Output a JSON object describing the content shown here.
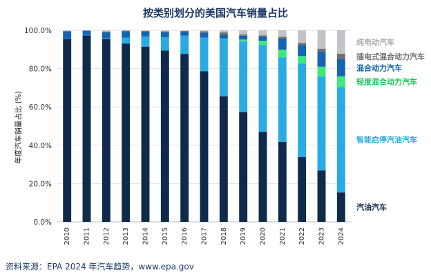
{
  "chart_data": {
    "type": "bar",
    "stacked": true,
    "title": "按类别划分的美国汽车销量占比",
    "ylabel": "年度汽车销量占比 (%)",
    "xlabel": "",
    "ylim": [
      0,
      100
    ],
    "yticks": [
      "0.0%",
      "20.0%",
      "40.0%",
      "60.0%",
      "80.0%",
      "100.0%"
    ],
    "ytick_values": [
      0,
      20,
      40,
      60,
      80,
      100
    ],
    "grid": true,
    "legend_placement": "right, inline labels",
    "categories": [
      "2010",
      "2011",
      "2012",
      "2013",
      "2014",
      "2015",
      "2016",
      "2017",
      "2018",
      "2019",
      "2020",
      "2021",
      "2022",
      "2023",
      "2024"
    ],
    "series": [
      {
        "name": "汽油汽车",
        "color": "#0f2a4a",
        "values": [
          95.6,
          97.3,
          95.5,
          93.1,
          91.5,
          89.4,
          87.6,
          78.6,
          65.6,
          57.3,
          47.0,
          41.8,
          33.8,
          26.8,
          15.4
        ]
      },
      {
        "name": "智能启停汽油汽车",
        "color": "#29abe2",
        "values": [
          0.1,
          0.3,
          0.4,
          3.0,
          5.2,
          7.0,
          9.6,
          17.6,
          29.8,
          36.9,
          45.4,
          44.0,
          48.9,
          49.2,
          55.0
        ]
      },
      {
        "name": "轻度混合动力汽车",
        "color": "#3de87e",
        "values": [
          0,
          0,
          0,
          0,
          0,
          0,
          0,
          0,
          0.3,
          1.0,
          2.1,
          4.1,
          3.9,
          5.0,
          5.6
        ]
      },
      {
        "name": "混合动力汽车",
        "color": "#1464b4",
        "values": [
          3.8,
          2.2,
          3.1,
          3.4,
          2.6,
          2.6,
          2.1,
          2.5,
          2.0,
          2.0,
          2.3,
          5.8,
          5.7,
          7.8,
          8.9
        ]
      },
      {
        "name": "插电式混合动力汽车",
        "color": "#6f6f6f",
        "values": [
          0.1,
          0.1,
          0.4,
          0.3,
          0.4,
          0.5,
          0.4,
          0.8,
          1.2,
          0.6,
          0.5,
          0.9,
          1.1,
          1.6,
          2.9
        ]
      },
      {
        "name": "纯电动汽车",
        "color": "#c0c4c8",
        "values": [
          0.4,
          0.1,
          0.6,
          0.2,
          0.3,
          0.5,
          0.3,
          0.5,
          1.1,
          2.2,
          2.7,
          3.4,
          6.6,
          9.6,
          12.2
        ]
      }
    ]
  },
  "source": "资料来源：EPA 2024 年汽车趋势，www.epa.gov"
}
